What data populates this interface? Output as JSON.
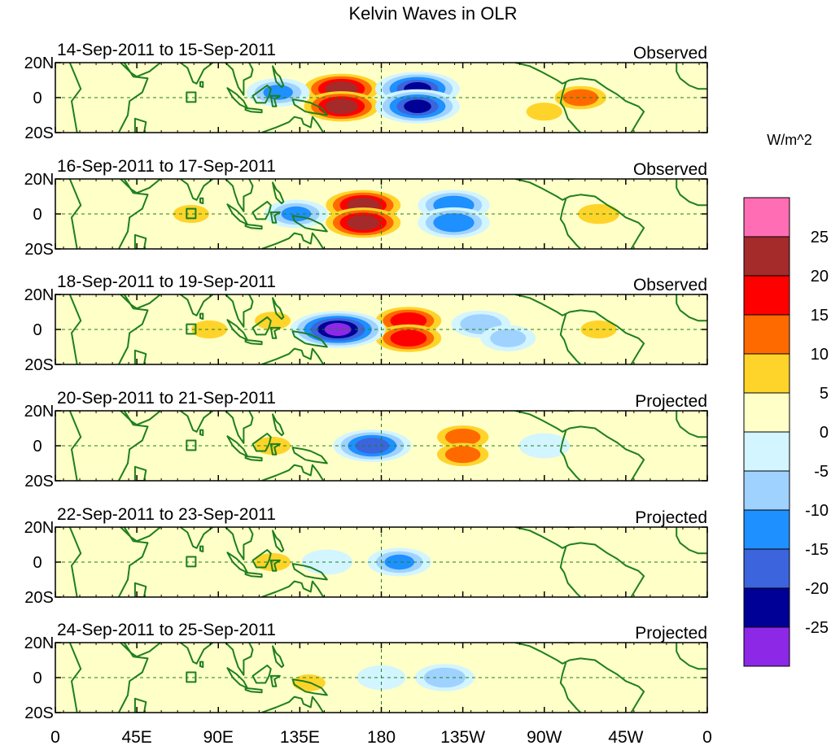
{
  "chart_data": {
    "type": "heatmap",
    "title": "Kelvin Waves in OLR",
    "units": "W/m^2",
    "x_ticks": [
      "0",
      "45E",
      "90E",
      "135E",
      "180",
      "135W",
      "90W",
      "45W",
      "0"
    ],
    "y_ticks": [
      "20N",
      "0",
      "20S"
    ],
    "xlim_lon_east": [
      0,
      360
    ],
    "ylim_lat": [
      -20,
      20
    ],
    "colorbar": {
      "labels": [
        "25",
        "20",
        "15",
        "10",
        "5",
        "0",
        "-5",
        "-10",
        "-15",
        "-20",
        "-25"
      ],
      "levels": [
        25,
        20,
        15,
        10,
        5,
        0,
        -5,
        -10,
        -15,
        -20,
        -25
      ],
      "colors": [
        "#ff6eb4",
        "#a52a2a",
        "#ff0000",
        "#ff6a00",
        "#ffd42a",
        "#ffffc8",
        "#d2f5ff",
        "#a0d2ff",
        "#1e90ff",
        "#3c64dc",
        "#000096",
        "#8c28e6"
      ]
    },
    "panels": [
      {
        "period": "14-Sep-2011 to 15-Sep-2011",
        "label": "Observed",
        "anomalies": [
          {
            "lon": 158,
            "lat": 5,
            "value": 22
          },
          {
            "lon": 158,
            "lat": -5,
            "value": 22
          },
          {
            "lon": 200,
            "lat": 5,
            "value": -20
          },
          {
            "lon": 200,
            "lat": -5,
            "value": -20
          },
          {
            "lon": 123,
            "lat": 3,
            "value": -10
          },
          {
            "lon": 290,
            "lat": 0,
            "value": 12
          },
          {
            "lon": 270,
            "lat": -8,
            "value": 6
          }
        ]
      },
      {
        "period": "16-Sep-2011 to 17-Sep-2011",
        "label": "Observed",
        "anomalies": [
          {
            "lon": 170,
            "lat": 5,
            "value": 22
          },
          {
            "lon": 170,
            "lat": -5,
            "value": 22
          },
          {
            "lon": 220,
            "lat": 5,
            "value": -14
          },
          {
            "lon": 220,
            "lat": -5,
            "value": -14
          },
          {
            "lon": 133,
            "lat": 0,
            "value": -10
          },
          {
            "lon": 300,
            "lat": 0,
            "value": 8
          },
          {
            "lon": 75,
            "lat": 0,
            "value": 6
          }
        ]
      },
      {
        "period": "18-Sep-2011 to 19-Sep-2011",
        "label": "Observed",
        "anomalies": [
          {
            "lon": 195,
            "lat": 5,
            "value": 18
          },
          {
            "lon": 195,
            "lat": -5,
            "value": 18
          },
          {
            "lon": 156,
            "lat": 0,
            "value": -25
          },
          {
            "lon": 235,
            "lat": 3,
            "value": -8
          },
          {
            "lon": 250,
            "lat": -5,
            "value": -6
          },
          {
            "lon": 85,
            "lat": 0,
            "value": 6
          },
          {
            "lon": 120,
            "lat": 5,
            "value": 6
          },
          {
            "lon": 300,
            "lat": 0,
            "value": 6
          }
        ]
      },
      {
        "period": "20-Sep-2011 to 21-Sep-2011",
        "label": "Projected",
        "anomalies": [
          {
            "lon": 225,
            "lat": 5,
            "value": 12
          },
          {
            "lon": 225,
            "lat": -5,
            "value": 12
          },
          {
            "lon": 175,
            "lat": 0,
            "value": -17
          },
          {
            "lon": 120,
            "lat": 0,
            "value": 6
          },
          {
            "lon": 40,
            "lat": 0,
            "value": 4
          },
          {
            "lon": 270,
            "lat": 0,
            "value": -4
          }
        ]
      },
      {
        "period": "22-Sep-2011 to 23-Sep-2011",
        "label": "Projected",
        "anomalies": [
          {
            "lon": 120,
            "lat": 0,
            "value": 6
          },
          {
            "lon": 190,
            "lat": 0,
            "value": -10
          },
          {
            "lon": 250,
            "lat": 0,
            "value": 3
          },
          {
            "lon": 300,
            "lat": 0,
            "value": 3
          },
          {
            "lon": 150,
            "lat": 0,
            "value": -4
          }
        ]
      },
      {
        "period": "24-Sep-2011 to 25-Sep-2011",
        "label": "Projected",
        "anomalies": [
          {
            "lon": 140,
            "lat": -3,
            "value": 5
          },
          {
            "lon": 215,
            "lat": 0,
            "value": -8
          },
          {
            "lon": 90,
            "lat": 0,
            "value": 3
          },
          {
            "lon": 290,
            "lat": 0,
            "value": 3
          },
          {
            "lon": 180,
            "lat": 0,
            "value": -3
          }
        ]
      }
    ]
  }
}
